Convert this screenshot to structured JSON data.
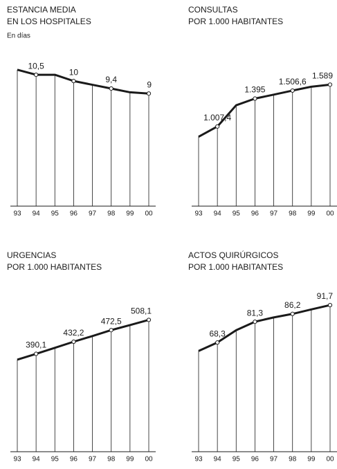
{
  "chart_data": [
    {
      "type": "line",
      "title": [
        "ESTANCIA MEDIA",
        "EN LOS HOSPITALES"
      ],
      "subtitle": "En días",
      "categories": [
        "93",
        "94",
        "95",
        "96",
        "97",
        "98",
        "99",
        "00"
      ],
      "values": [
        10.9,
        10.5,
        10.5,
        10,
        9.7,
        9.4,
        9.1,
        9
      ],
      "value_labels": [
        null,
        "10,5",
        null,
        "10",
        null,
        "9,4",
        null,
        "9"
      ],
      "color": "#1a1a1a",
      "ylim": [
        0,
        11.5
      ]
    },
    {
      "type": "line",
      "title": [
        "CONSULTAS",
        "POR 1.000 HABITANTES"
      ],
      "categories": [
        "93",
        "94",
        "95",
        "96",
        "97",
        "98",
        "99",
        "00"
      ],
      "values": [
        865,
        1007.4,
        1302,
        1395,
        1450,
        1506.6,
        1560,
        1589
      ],
      "value_labels": [
        null,
        "1.007,4",
        null,
        "1.395",
        null,
        "1.506,6",
        null,
        "1.589"
      ],
      "color": "#1a1a1a",
      "ylim": [
        -100,
        1900
      ]
    },
    {
      "type": "line",
      "title": [
        "URGENCIAS",
        "POR 1.000 HABITANTES"
      ],
      "categories": [
        "93",
        "94",
        "95",
        "96",
        "97",
        "98",
        "99",
        "00"
      ],
      "values": [
        370,
        390.1,
        411,
        432.2,
        452,
        472.5,
        490,
        508.1
      ],
      "value_labels": [
        null,
        "390,1",
        null,
        "432,2",
        null,
        "472,5",
        null,
        "508,1"
      ],
      "color": "#1a1a1a",
      "ylim": [
        50,
        550
      ]
    },
    {
      "type": "line",
      "title": [
        "ACTOS QUIRÚRGICOS",
        "POR 1.000 HABITANTES"
      ],
      "categories": [
        "93",
        "94",
        "95",
        "96",
        "97",
        "98",
        "99",
        "00"
      ],
      "values": [
        63,
        68.3,
        76,
        81.3,
        84,
        86.2,
        89,
        91.7
      ],
      "value_labels": [
        null,
        "68,3",
        null,
        "81,3",
        null,
        "86,2",
        null,
        "91,7"
      ],
      "color": "#1a1a1a",
      "ylim": [
        0,
        90
      ]
    }
  ]
}
